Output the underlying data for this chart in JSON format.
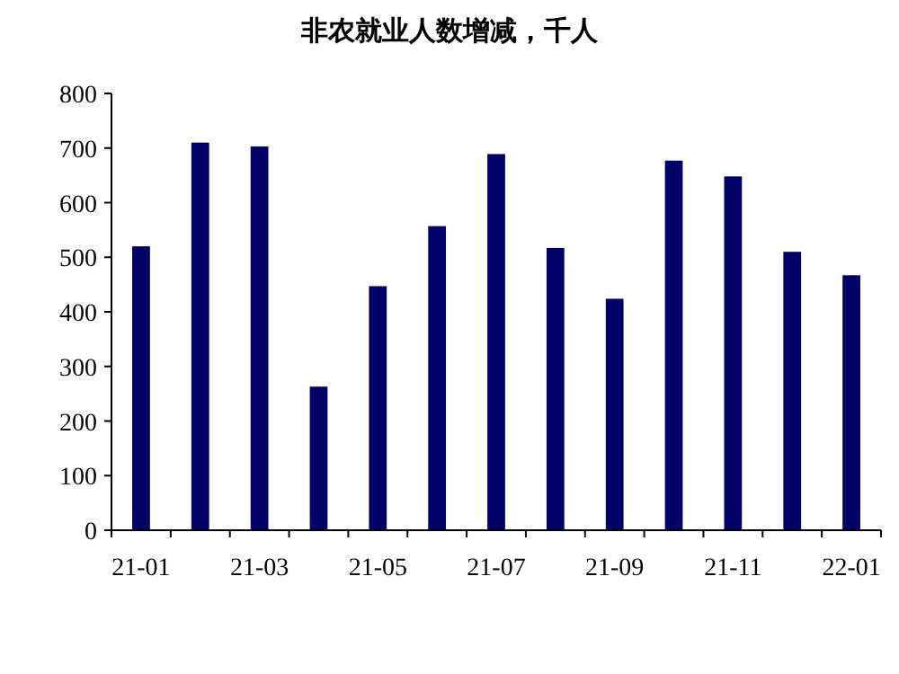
{
  "chart_data": {
    "type": "bar",
    "title": "非农就业人数增减，千人",
    "categories": [
      "21-01",
      null,
      "21-03",
      null,
      "21-05",
      null,
      "21-07",
      null,
      "21-09",
      null,
      "21-11",
      null,
      "22-01"
    ],
    "values": [
      520,
      710,
      703,
      263,
      447,
      557,
      689,
      517,
      424,
      677,
      648,
      510,
      467
    ],
    "color": "#000066",
    "ylim": [
      0,
      800
    ],
    "yticks": [
      0,
      100,
      200,
      300,
      400,
      500,
      600,
      700,
      800
    ],
    "grid": false
  }
}
